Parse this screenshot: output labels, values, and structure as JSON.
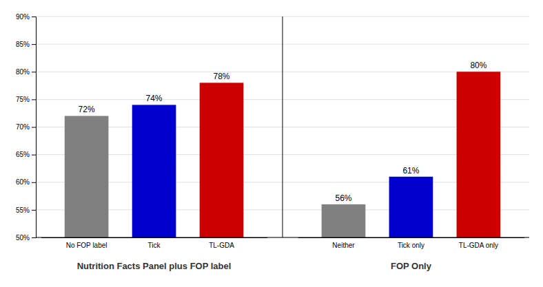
{
  "chart_data": {
    "type": "bar",
    "categories": [
      "No FOP label",
      "Tick",
      "TL-GDA",
      "Neither",
      "Tick only",
      "TL-GDA only"
    ],
    "values": [
      72,
      74,
      78,
      56,
      61,
      80
    ],
    "value_labels": [
      "72%",
      "74%",
      "78%",
      "56%",
      "61%",
      "80%"
    ],
    "data_labels": true,
    "colors": [
      "#808080",
      "#0000CC",
      "#CC0000",
      "#808080",
      "#0000CC",
      "#CC0000"
    ],
    "group_labels": [
      "Nutrition Facts Panel plus FOP label",
      "FOP Only"
    ],
    "ylim": [
      50,
      90
    ],
    "yticks": [
      {
        "value": 50,
        "label": "50%"
      },
      {
        "value": 55,
        "label": "55%"
      },
      {
        "value": 60,
        "label": "60%"
      },
      {
        "value": 65,
        "label": "65%"
      },
      {
        "value": 70,
        "label": "70%"
      },
      {
        "value": 75,
        "label": "75%"
      },
      {
        "value": 80,
        "label": "80%"
      },
      {
        "value": 85,
        "label": "85%"
      },
      {
        "value": 90,
        "label": "90%"
      }
    ],
    "grid": true
  }
}
